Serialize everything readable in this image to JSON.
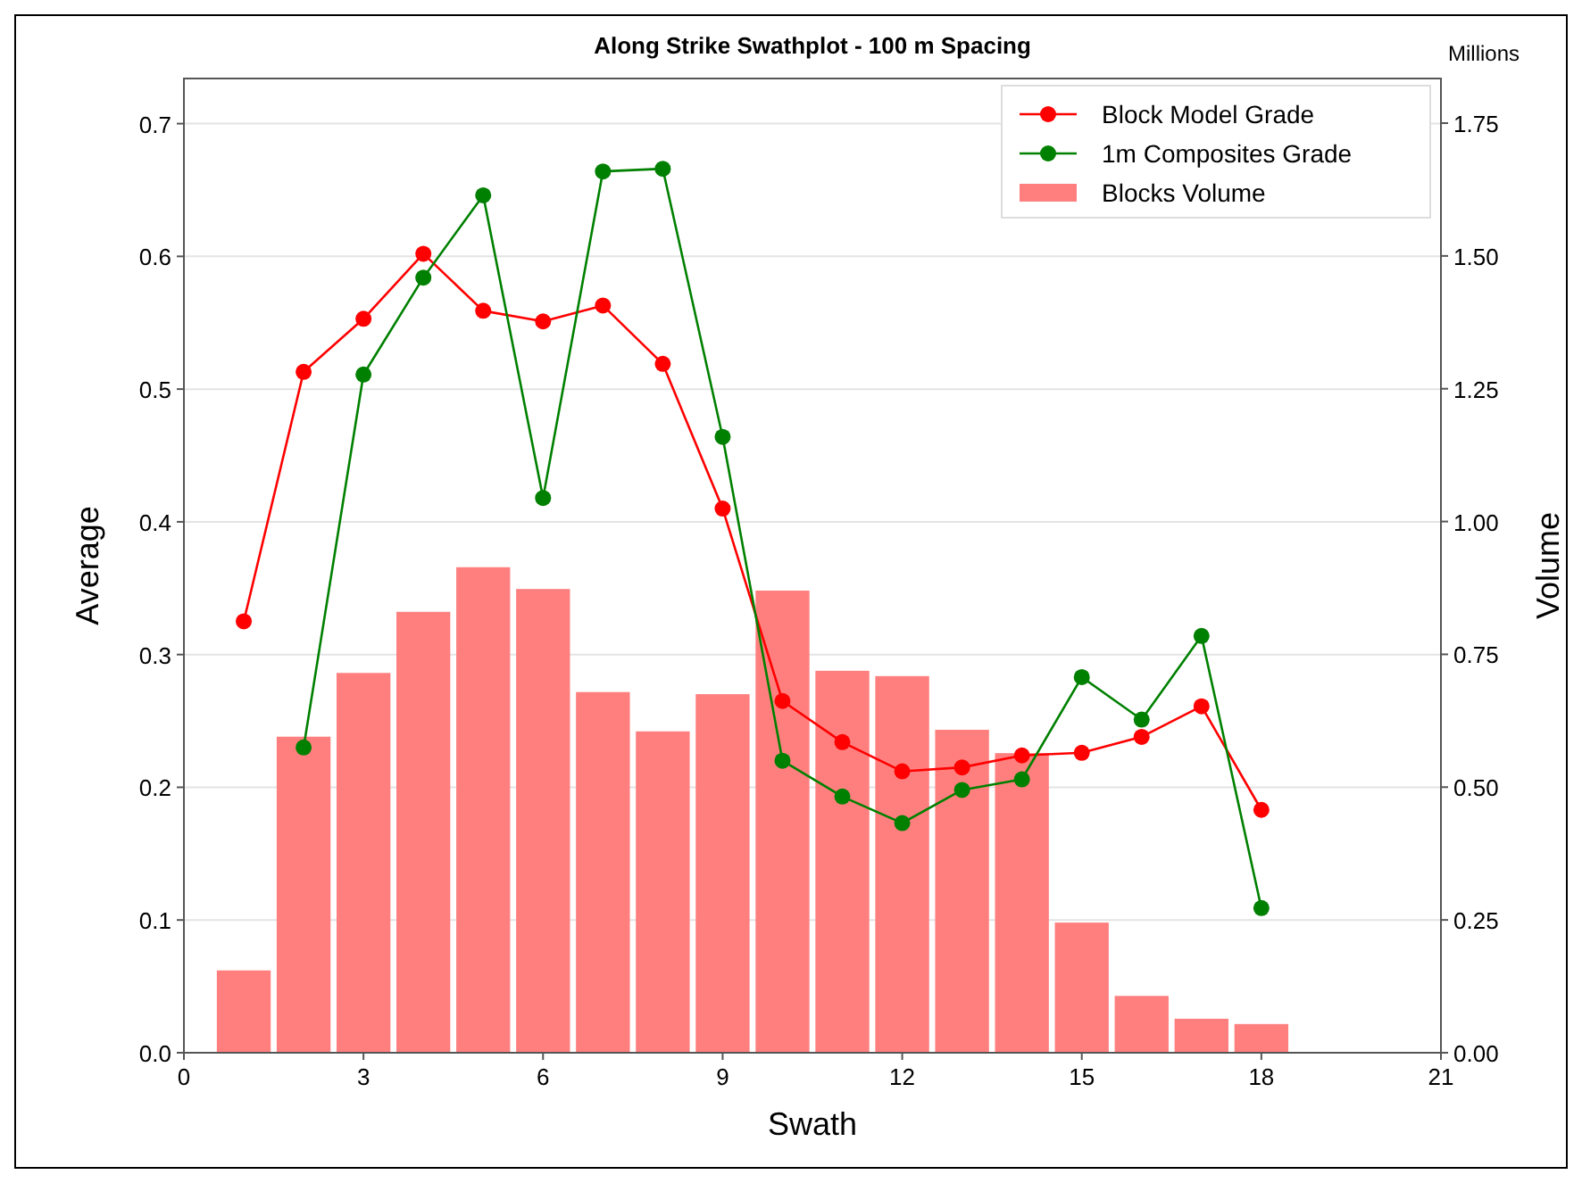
{
  "chart_data": {
    "type": "line",
    "title": "Along Strike Swathplot - 100 m Spacing",
    "xlabel": "Swath",
    "ylabel": "Average",
    "y2label": "Volume",
    "annotations": [
      "Millions"
    ],
    "x": [
      1,
      2,
      3,
      4,
      5,
      6,
      7,
      8,
      9,
      10,
      11,
      12,
      13,
      14,
      15,
      16,
      17,
      18
    ],
    "series": [
      {
        "name": "Block Model Grade",
        "color": "#ff0000",
        "values": [
          0.325,
          0.513,
          0.553,
          0.602,
          0.559,
          0.551,
          0.563,
          0.519,
          0.41,
          0.265,
          0.234,
          0.212,
          0.215,
          0.224,
          0.226,
          0.238,
          0.261,
          0.183
        ]
      },
      {
        "name": "1m Composites Grade",
        "color": "#008000",
        "values": [
          null,
          0.23,
          0.511,
          0.584,
          0.646,
          0.418,
          0.664,
          0.666,
          0.464,
          0.22,
          0.193,
          0.173,
          0.198,
          0.206,
          0.283,
          0.251,
          0.314,
          0.109
        ]
      },
      {
        "name": "Blocks Volume",
        "type": "bar",
        "axis": "y2",
        "color": "#ff7f7f",
        "values": [
          0.155,
          0.595,
          0.715,
          0.83,
          0.914,
          0.873,
          0.679,
          0.605,
          0.675,
          0.87,
          0.719,
          0.709,
          0.608,
          0.564,
          0.245,
          0.107,
          0.064,
          0.054
        ]
      }
    ],
    "xlim": [
      0,
      21
    ],
    "xticks": [
      0,
      3,
      6,
      9,
      12,
      15,
      18,
      21
    ],
    "ylim": [
      0,
      0.734
    ],
    "yticks": [
      {
        "value": 0,
        "label": "0.0"
      },
      0.1,
      0.2,
      0.3,
      0.4,
      0.5,
      0.6,
      0.7
    ],
    "y2lim": [
      0,
      1.834
    ],
    "y2ticks": [
      {
        "value": 0,
        "label": "0.00"
      },
      0.25,
      {
        "value": 0.5,
        "label": "0.50"
      },
      0.75,
      {
        "value": 1,
        "label": "1.00"
      },
      1.25,
      {
        "value": 1.5,
        "label": "1.50"
      },
      1.75
    ],
    "grid": "y",
    "legend": "top right",
    "marker": "circle",
    "line_style": "solid"
  }
}
